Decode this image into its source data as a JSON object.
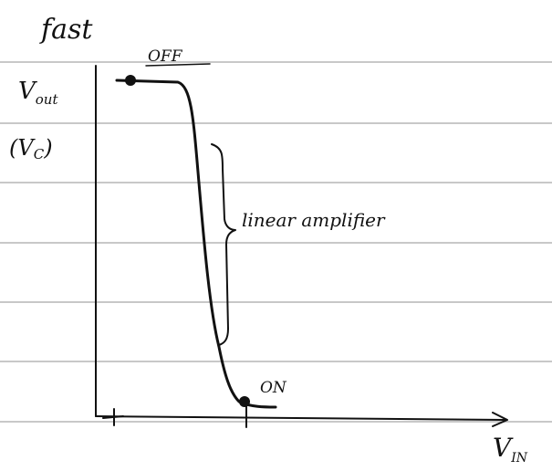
{
  "heading": "fast",
  "y_label": {
    "main": "V",
    "sub": "out"
  },
  "y_label_alt": {
    "prefix": "(V",
    "sub": "C",
    "suffix": ")"
  },
  "x_label": {
    "main": "V",
    "sub": "IN"
  },
  "points": {
    "off": "OFF",
    "on": "ON"
  },
  "region": "linear amplifier"
}
